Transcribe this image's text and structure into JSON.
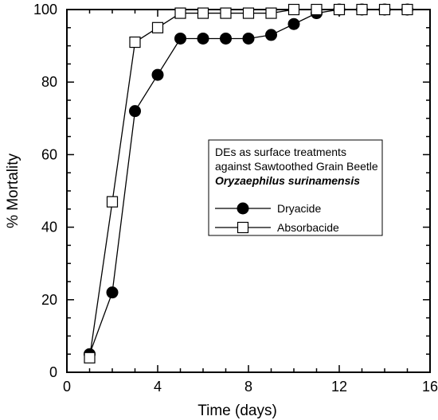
{
  "chart_data": {
    "type": "line",
    "xlabel": "Time (days)",
    "ylabel": "% Mortality",
    "xlim": [
      0,
      16
    ],
    "ylim": [
      0,
      100
    ],
    "xticks": [
      0,
      4,
      8,
      12,
      16
    ],
    "yticks": [
      0,
      20,
      40,
      60,
      80,
      100
    ],
    "grid": false,
    "legend_placement": "center-right",
    "legend_title_lines": [
      "DEs as surface treatments",
      "against Sawtoothed Grain Beetle",
      "Oryzaephilus surinamensis"
    ],
    "series": [
      {
        "name": "Dryacide",
        "marker": "filled-circle",
        "color": "#000000",
        "x": [
          1,
          2,
          3,
          4,
          5,
          6,
          7,
          8,
          9,
          10,
          11,
          12,
          13,
          14,
          15
        ],
        "y": [
          5,
          22,
          72,
          82,
          92,
          92,
          92,
          92,
          93,
          96,
          99,
          100,
          100,
          100,
          100
        ]
      },
      {
        "name": "Absorbacide",
        "marker": "open-square",
        "color": "#000000",
        "x": [
          1,
          2,
          3,
          4,
          5,
          6,
          7,
          8,
          9,
          10,
          11,
          12,
          13,
          14,
          15
        ],
        "y": [
          4,
          47,
          91,
          95,
          99,
          99,
          99,
          99,
          99,
          100,
          100,
          100,
          100,
          100,
          100
        ]
      }
    ]
  }
}
